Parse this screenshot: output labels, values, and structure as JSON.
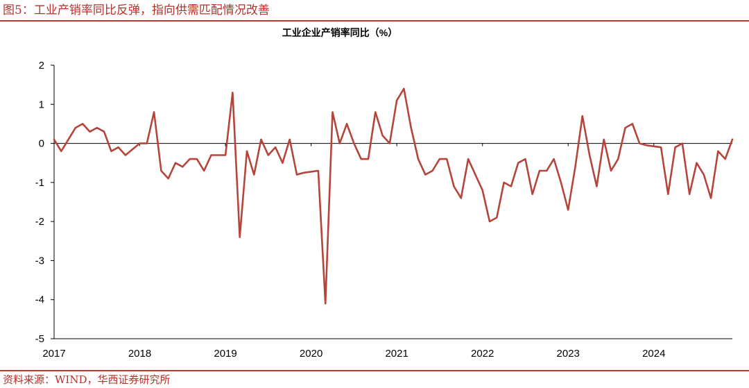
{
  "figure": {
    "title": "图5：工业产销率同比反弹，指向供需匹配情况改善",
    "source": "资料来源：WIND，华西证券研究所"
  },
  "colors": {
    "accent": "#c0392b",
    "line": "#b5443a"
  },
  "chart_data": {
    "type": "line",
    "title": "工业企业产销率同比（%）",
    "xlabel": "",
    "ylabel": "",
    "ylim": [
      -5,
      2
    ],
    "yticks": [
      2,
      1,
      0,
      -1,
      -2,
      -3,
      -4,
      -5
    ],
    "xlim": [
      "2017-01",
      "2024-12"
    ],
    "xticks": [
      "2017",
      "2018",
      "2019",
      "2020",
      "2021",
      "2022",
      "2023",
      "2024"
    ],
    "grid": false,
    "legend": "none",
    "series": [
      {
        "name": "",
        "x": [
          "2017-01",
          "2017-02",
          "2017-04",
          "2017-05",
          "2017-06",
          "2017-07",
          "2017-08",
          "2017-09",
          "2017-10",
          "2017-11",
          "2017-12",
          "2018-01",
          "2018-02",
          "2018-03",
          "2018-04",
          "2018-05",
          "2018-06",
          "2018-07",
          "2018-08",
          "2018-09",
          "2018-10",
          "2018-11",
          "2018-12",
          "2019-01",
          "2019-02",
          "2019-03",
          "2019-04",
          "2019-05",
          "2019-06",
          "2019-07",
          "2019-08",
          "2019-09",
          "2019-10",
          "2019-11",
          "2019-12",
          "2020-02",
          "2020-03",
          "2020-04",
          "2020-05",
          "2020-06",
          "2020-07",
          "2020-08",
          "2020-09",
          "2020-10",
          "2020-11",
          "2020-12",
          "2021-01",
          "2021-02",
          "2021-03",
          "2021-04",
          "2021-05",
          "2021-06",
          "2021-07",
          "2021-08",
          "2021-09",
          "2021-10",
          "2021-11",
          "2021-12",
          "2022-01",
          "2022-02",
          "2022-03",
          "2022-04",
          "2022-05",
          "2022-06",
          "2022-07",
          "2022-08",
          "2022-09",
          "2022-10",
          "2022-11",
          "2022-12",
          "2023-01",
          "2023-02",
          "2023-03",
          "2023-04",
          "2023-05",
          "2023-06",
          "2023-07",
          "2023-08",
          "2023-09",
          "2023-10",
          "2023-11",
          "2023-12",
          "2024-02",
          "2024-03",
          "2024-04",
          "2024-05",
          "2024-06",
          "2024-07",
          "2024-08",
          "2024-09",
          "2024-10",
          "2024-11",
          "2024-12"
        ],
        "y": [
          0.1,
          -0.2,
          0.4,
          0.5,
          0.3,
          0.4,
          0.3,
          -0.2,
          -0.1,
          -0.3,
          -0.15,
          0.0,
          0.0,
          0.8,
          -0.7,
          -0.9,
          -0.5,
          -0.6,
          -0.4,
          -0.4,
          -0.7,
          -0.3,
          -0.3,
          -0.3,
          1.3,
          -2.4,
          -0.2,
          -0.8,
          0.1,
          -0.3,
          -0.1,
          -0.5,
          0.1,
          -0.8,
          -0.75,
          -0.7,
          -4.1,
          0.8,
          0.0,
          0.5,
          0.0,
          -0.4,
          -0.4,
          0.8,
          0.2,
          0.0,
          1.1,
          1.4,
          0.4,
          -0.4,
          -0.8,
          -0.7,
          -0.4,
          -0.4,
          -1.1,
          -1.4,
          -0.4,
          -0.8,
          -1.2,
          -2.0,
          -1.9,
          -1.0,
          -1.1,
          -0.5,
          -0.4,
          -1.3,
          -0.7,
          -0.7,
          -0.4,
          -1.0,
          -1.7,
          -0.6,
          0.7,
          -0.3,
          -1.1,
          0.1,
          -0.7,
          -0.4,
          0.4,
          0.5,
          0.0,
          -0.05,
          -0.1,
          -1.3,
          -0.1,
          0.0,
          -1.3,
          -0.5,
          -0.8,
          -1.4,
          -0.2,
          -0.4,
          0.1
        ]
      }
    ]
  }
}
